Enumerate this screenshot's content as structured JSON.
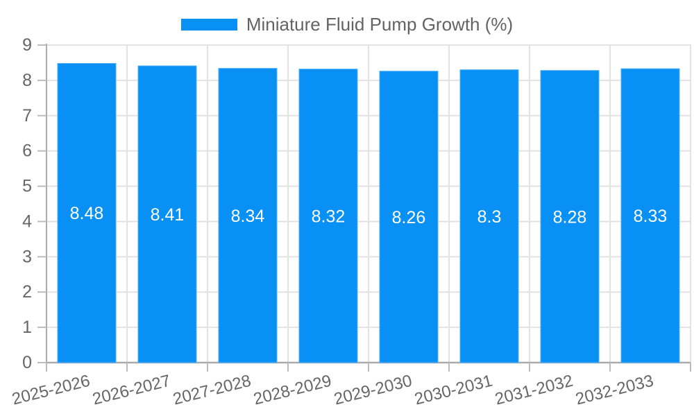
{
  "legend": {
    "label": "Miniature Fluid Pump Growth (%)"
  },
  "chart_data": {
    "type": "bar",
    "title": "Miniature Fluid Pump Growth (%)",
    "categories": [
      "2025-2026",
      "2026-2027",
      "2027-2028",
      "2028-2029",
      "2029-2030",
      "2030-2031",
      "2031-2032",
      "2032-2033"
    ],
    "values": [
      8.48,
      8.41,
      8.34,
      8.32,
      8.26,
      8.3,
      8.28,
      8.33
    ],
    "value_labels": [
      "8.48",
      "8.41",
      "8.34",
      "8.32",
      "8.26",
      "8.3",
      "8.28",
      "8.33"
    ],
    "xlabel": "",
    "ylabel": "",
    "ylim": [
      0,
      9
    ],
    "ytick_step": 1,
    "grid": true,
    "legend_position": "top",
    "colors": {
      "bar_fill": "#0890F5",
      "bar_edge": "#4FB0F8",
      "bar_label": "#ffffff",
      "grid_line": "#e2e2e2",
      "axis_line": "#aaaaaa",
      "tick_mark": "#bbbbbb",
      "tick_label": "#666666"
    }
  }
}
